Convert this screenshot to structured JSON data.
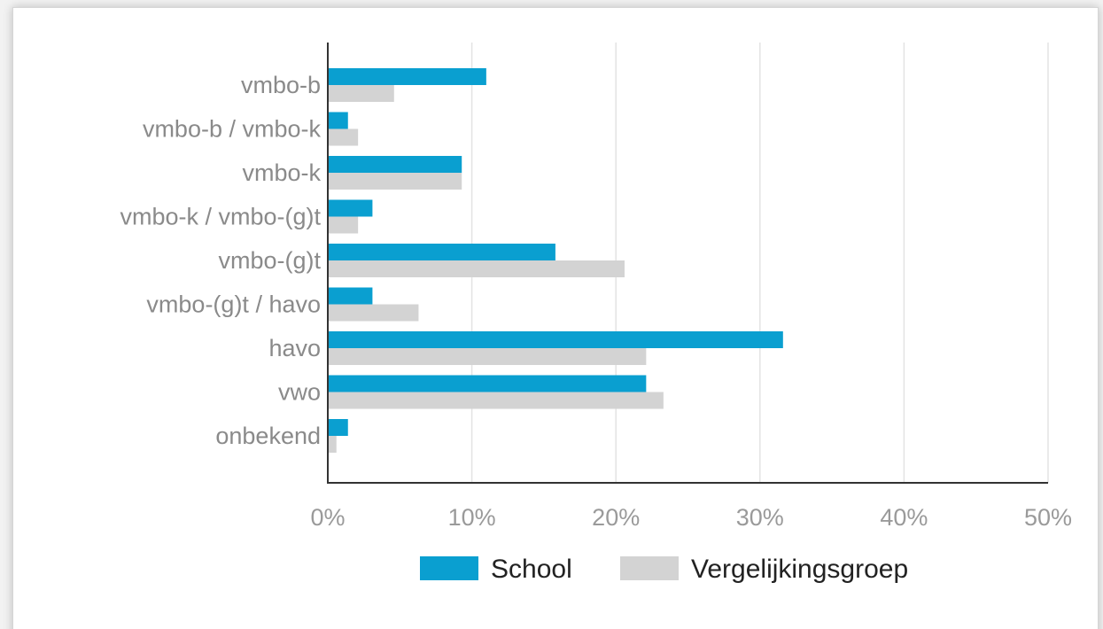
{
  "chart_data": {
    "type": "bar",
    "orientation": "horizontal",
    "categories": [
      "vmbo-b",
      "vmbo-b / vmbo-k",
      "vmbo-k",
      "vmbo-k / vmbo-(g)t",
      "vmbo-(g)t",
      "vmbo-(g)t / havo",
      "havo",
      "vwo",
      "onbekend"
    ],
    "series": [
      {
        "name": "School",
        "color": "#0a9fd0",
        "values": [
          11,
          1.4,
          9.3,
          3.1,
          15.8,
          3.1,
          31.6,
          22.1,
          1.4
        ]
      },
      {
        "name": "Vergelijkingsgroep",
        "color": "#d3d3d3",
        "values": [
          4.6,
          2.1,
          9.3,
          2.1,
          20.6,
          6.3,
          22.1,
          23.3,
          0.6
        ]
      }
    ],
    "xlim": [
      0,
      50
    ],
    "x_ticks": [
      "0%",
      "10%",
      "20%",
      "30%",
      "40%",
      "50%"
    ],
    "grid": true,
    "legend_position": "bottom"
  },
  "legend": {
    "items": [
      {
        "label": "School",
        "color": "#0a9fd0"
      },
      {
        "label": "Vergelijkingsgroep",
        "color": "#d3d3d3"
      }
    ]
  }
}
